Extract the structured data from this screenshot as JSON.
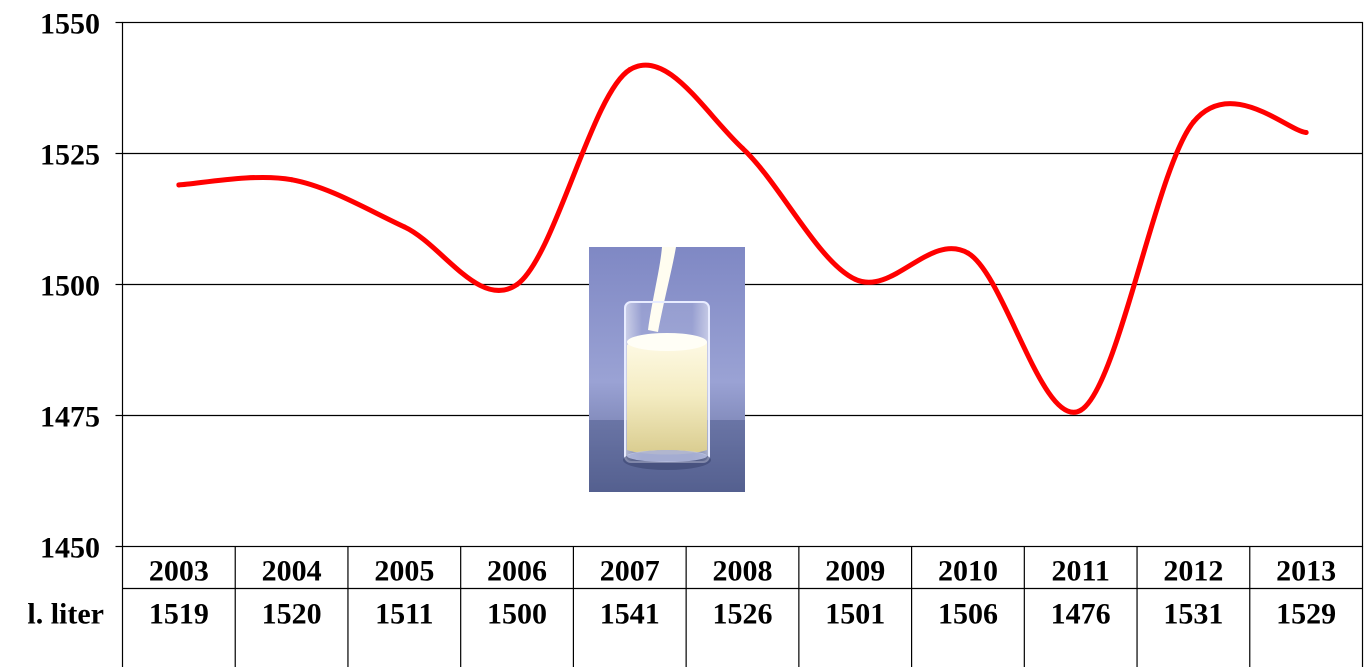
{
  "chart_data": {
    "type": "line",
    "title": "",
    "xlabel": "",
    "ylabel": "",
    "categories": [
      "2003",
      "2004",
      "2005",
      "2006",
      "2007",
      "2008",
      "2009",
      "2010",
      "2011",
      "2012",
      "2013"
    ],
    "series": [
      {
        "values": [
          1519,
          1520,
          1511,
          1500,
          1541,
          1526,
          1501,
          1506,
          1476,
          1531,
          1529
        ],
        "color": "#ff0000"
      }
    ],
    "ylim": [
      1450,
      1550
    ],
    "yticks": [
      1450,
      1475,
      1500,
      1525,
      1550
    ],
    "grid": true,
    "smooth": true,
    "data_table": {
      "row_label": "l. liter",
      "values": [
        "1519",
        "1520",
        "1511",
        "1500",
        "1541",
        "1526",
        "1501",
        "1506",
        "1476",
        "1531",
        "1529"
      ]
    },
    "illustration": "milk-glass-image"
  }
}
